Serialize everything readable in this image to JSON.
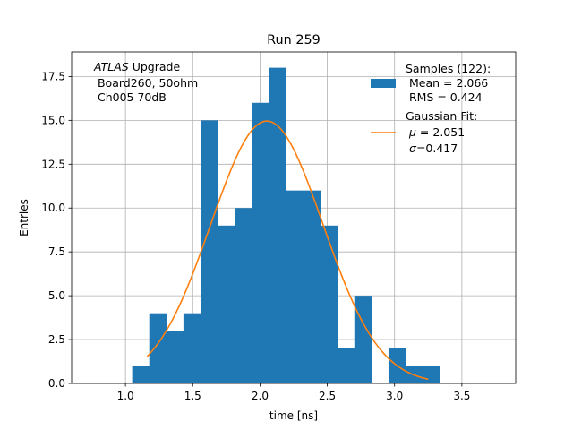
{
  "chart_data": {
    "type": "bar",
    "title": "Run 259",
    "xlabel": "time [ns]",
    "ylabel": "Entries",
    "xlim": [
      0.6,
      3.9
    ],
    "ylim": [
      0,
      18.9
    ],
    "xticks": [
      1.0,
      1.5,
      2.0,
      2.5,
      3.0,
      3.5
    ],
    "xtick_labels": [
      "1.0",
      "1.5",
      "2.0",
      "2.5",
      "3.0",
      "3.5"
    ],
    "yticks": [
      0.0,
      2.5,
      5.0,
      7.5,
      10.0,
      12.5,
      15.0,
      17.5
    ],
    "ytick_labels": [
      "0.0",
      "2.5",
      "5.0",
      "7.5",
      "10.0",
      "12.5",
      "15.0",
      "17.5"
    ],
    "grid": true,
    "colors": {
      "histogram": "#1f77b4",
      "fit": "#ff7f0e"
    },
    "annotation": {
      "atlas": "ATLAS",
      "upgrade": " Upgrade",
      "line2": " Board260, 50ohm",
      "line3": " Ch005 70dB"
    },
    "legend_position": "top-right",
    "histogram": {
      "name": "Samples (122):",
      "legend_lines": [
        "Samples (122):",
        " Mean = 2.066",
        " RMS = 0.424"
      ],
      "bin_edges": [
        1.05,
        1.177,
        1.304,
        1.431,
        1.558,
        1.685,
        1.812,
        1.939,
        2.066,
        2.193,
        2.32,
        2.447,
        2.574,
        2.701,
        2.828,
        2.955,
        3.082,
        3.209,
        3.336
      ],
      "counts": [
        1,
        4,
        3,
        4,
        15,
        9,
        10,
        16,
        18,
        11,
        11,
        9,
        2,
        5,
        0,
        2,
        1,
        1
      ]
    },
    "fit": {
      "name": "Gaussian Fit:",
      "legend_title": "Gaussian Fit:",
      "mu_symbol": "μ",
      "mu_text": " = 2.051",
      "sigma_symbol": "σ",
      "sigma_text": "=0.417",
      "mu": 2.051,
      "sigma": 0.417,
      "peak": 14.96,
      "x_range": [
        1.16,
        3.25
      ]
    }
  }
}
